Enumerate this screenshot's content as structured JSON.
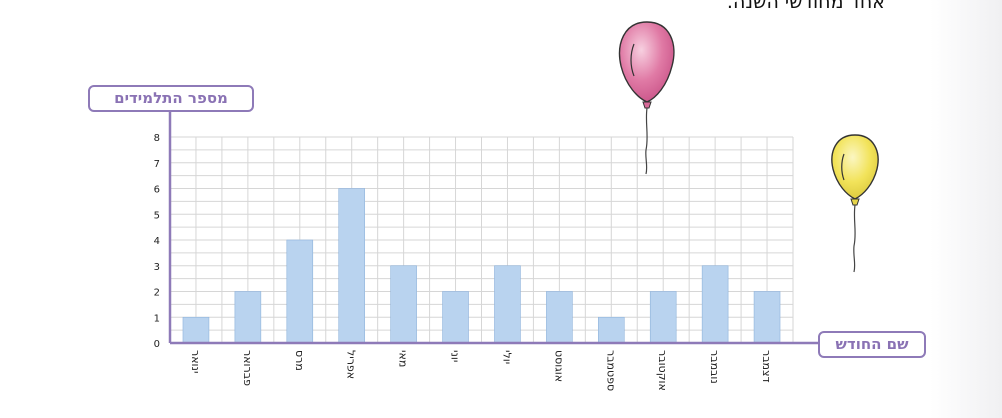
{
  "header": {
    "text": "אחד מחודשי השנה."
  },
  "chart_data": {
    "type": "bar",
    "ylabel": "מספר התלמידים",
    "xlabel": "שם החודש",
    "categories": [
      "ינואר",
      "פברואר",
      "מרס",
      "אפריל",
      "מאי",
      "יוני",
      "יולי",
      "אוגוסט",
      "ספטמבר",
      "אוקטובר",
      "נובמבר",
      "דצמבר"
    ],
    "values": [
      1,
      2,
      4,
      6,
      3,
      2,
      3,
      2,
      1,
      2,
      3,
      2
    ],
    "yticks": [
      "0",
      "1",
      "2",
      "3",
      "4",
      "5",
      "6",
      "7",
      "8"
    ],
    "ylim": [
      0,
      8
    ],
    "grid": true,
    "colors": {
      "bar": "#b9d3ef",
      "bar_edge": "#8fb3dc",
      "grid": "#d6d6d6",
      "axis": "#8e7ab8",
      "label": "#8a72b4"
    }
  },
  "decor": {
    "balloon_pink": "#e07aa5",
    "balloon_yellow": "#f2e35a"
  }
}
